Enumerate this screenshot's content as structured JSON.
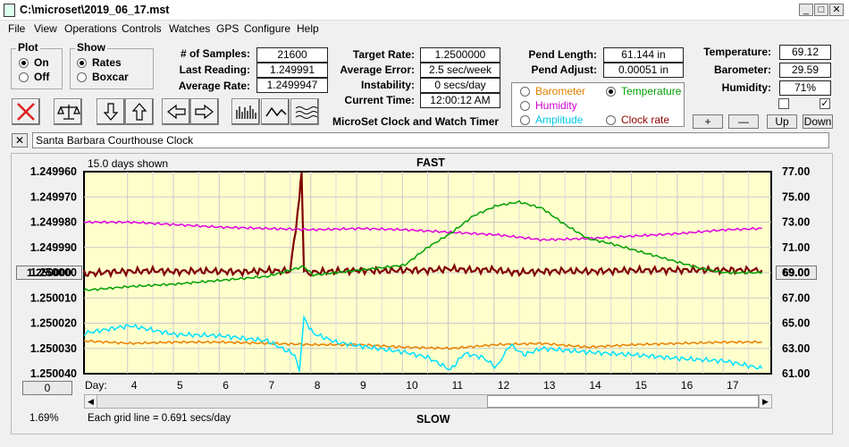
{
  "window": {
    "title": "C:\\microset\\2019_06_17.mst"
  },
  "menu": [
    "File",
    "View",
    "Operations",
    "Controls",
    "Watches",
    "GPS",
    "Configure",
    "Help"
  ],
  "plot_group": {
    "title": "Plot",
    "options": [
      {
        "label": "On",
        "selected": true
      },
      {
        "label": "Off",
        "selected": false
      }
    ]
  },
  "show_group": {
    "title": "Show",
    "options": [
      {
        "label": "Rates",
        "selected": true
      },
      {
        "label": "Boxcar",
        "selected": false
      }
    ]
  },
  "stats_left": [
    {
      "label": "# of Samples:",
      "value": "21600"
    },
    {
      "label": "Last Reading:",
      "value": "1.249991"
    },
    {
      "label": "Average Rate:",
      "value": "1.2499947"
    }
  ],
  "stats_mid": [
    {
      "label": "Target Rate:",
      "value": "1.2500000"
    },
    {
      "label": "Average Error:",
      "value": "2.5 sec/week"
    },
    {
      "label": "Instability:",
      "value": "0 secs/day"
    },
    {
      "label": "Current Time:",
      "value": "12:00:12 AM"
    }
  ],
  "app_caption": "MicroSet Clock and Watch Timer",
  "pend": [
    {
      "label": "Pend Length:",
      "value": "61.144 in"
    },
    {
      "label": "Pend Adjust:",
      "value": "0.00051 in"
    }
  ],
  "sensor_radios": [
    {
      "label": "Barometer",
      "color": "#e08000",
      "selected": false
    },
    {
      "label": "Temperature",
      "color": "#00a000",
      "selected": true
    },
    {
      "label": "Humidity",
      "color": "#d000d0",
      "selected": false
    },
    {
      "label": "Amplitude",
      "color": "#00c8e8",
      "selected": false
    },
    {
      "label": "Clock rate",
      "color": "#900000",
      "selected": false
    }
  ],
  "env": [
    {
      "label": "Temperature:",
      "value": "69.12"
    },
    {
      "label": "Barometer:",
      "value": "29.59"
    },
    {
      "label": "Humidity:",
      "value": "71%"
    }
  ],
  "env_checks": [
    false,
    true
  ],
  "adj_buttons": [
    "+",
    "—",
    "Up",
    "Down"
  ],
  "clock_name": "Santa Barbara Courthouse Clock",
  "chart_data": {
    "type": "line",
    "top_label": "FAST",
    "bottom_label": "SLOW",
    "days_shown": "15.0 days shown",
    "grid_note": "Each grid line = 0.691 secs/day",
    "x_prefix": "Day:",
    "x_ticks": [
      4,
      5,
      6,
      7,
      8,
      9,
      10,
      11,
      12,
      13,
      14,
      15,
      16,
      17
    ],
    "xlim": [
      3.0,
      18.0
    ],
    "left_ticks": [
      "1.249960",
      "1.249970",
      "1.249980",
      "1.249990",
      "1.250000",
      "1.250010",
      "1.250020",
      "1.250030",
      "1.250040"
    ],
    "left_ylim": [
      1.24996,
      1.25004
    ],
    "right_ticks": [
      "77.00",
      "75.00",
      "73.00",
      "71.00",
      "69.00",
      "67.00",
      "65.00",
      "63.00",
      "61.00"
    ],
    "right_ylim": [
      61,
      77
    ],
    "left_bottom_btn": "0",
    "right_mid_btn": "69.00",
    "left_mid_btn": "1.250000",
    "zoom_pct": "1.69%",
    "grid": true,
    "background": "#ffffcc",
    "series": [
      {
        "name": "Clock rate",
        "color": "#800000",
        "axis": "left",
        "x": [
          3.0,
          3.5,
          4.0,
          4.5,
          5.0,
          5.5,
          6.0,
          6.5,
          7.0,
          7.5,
          7.7,
          7.75,
          7.8,
          7.9,
          8.0,
          8.5,
          9.0,
          9.5,
          10.0,
          10.5,
          11.0,
          11.5,
          11.9,
          12.3,
          12.5,
          13.0,
          13.5,
          14.0,
          14.5,
          15.0,
          15.5,
          16.0,
          16.5,
          17.0,
          17.5,
          17.8
        ],
        "y": [
          1.2500005,
          1.2499998,
          1.2499995,
          1.2499992,
          1.2499996,
          1.2499993,
          1.2499995,
          1.2499997,
          1.2499992,
          1.2499994,
          1.249971,
          1.24996,
          1.249999,
          1.2500005,
          1.2499998,
          1.2499994,
          1.2499991,
          1.2499993,
          1.249999,
          1.2499991,
          1.2499985,
          1.249999,
          1.2499988,
          1.2499997,
          1.2499999,
          1.2499995,
          1.2499993,
          1.2499995,
          1.2499993,
          1.2499991,
          1.249999,
          1.249999,
          1.2499989,
          1.249999,
          1.249999,
          1.249999
        ]
      },
      {
        "name": "Humidity",
        "color": "#e000e0",
        "axis": "right",
        "x": [
          3.0,
          4.0,
          5.0,
          6.0,
          7.0,
          8.0,
          9.0,
          10.0,
          11.0,
          12.0,
          13.0,
          14.0,
          15.0,
          16.0,
          17.0,
          17.8
        ],
        "y": [
          73.0,
          73.0,
          72.8,
          72.6,
          72.5,
          72.4,
          72.5,
          72.4,
          72.2,
          72.0,
          71.6,
          71.7,
          71.9,
          72.1,
          72.4,
          72.5
        ]
      },
      {
        "name": "Temperature",
        "color": "#00a000",
        "axis": "right",
        "x": [
          3.0,
          4.0,
          5.0,
          6.0,
          7.0,
          7.8,
          8.0,
          9.0,
          10.0,
          10.5,
          11.0,
          11.5,
          12.0,
          12.5,
          13.0,
          13.5,
          14.0,
          14.5,
          15.0,
          15.5,
          16.0,
          16.5,
          17.0,
          17.8
        ],
        "y": [
          67.6,
          67.9,
          68.1,
          68.4,
          68.7,
          69.5,
          68.8,
          69.2,
          69.6,
          71.0,
          72.1,
          73.5,
          74.3,
          74.6,
          74.1,
          72.8,
          71.7,
          71.3,
          70.8,
          70.3,
          69.8,
          69.3,
          69.0,
          69.0
        ]
      },
      {
        "name": "Barometer",
        "color": "#e88000",
        "axis": "right",
        "x": [
          3.0,
          4.0,
          5.0,
          6.0,
          7.0,
          8.0,
          9.0,
          10.0,
          11.0,
          12.0,
          13.0,
          14.0,
          15.0,
          16.0,
          17.0,
          17.8
        ],
        "y": [
          63.6,
          63.4,
          63.5,
          63.5,
          63.4,
          63.3,
          63.3,
          63.1,
          63.0,
          63.3,
          63.4,
          63.1,
          63.3,
          63.4,
          63.5,
          63.5
        ]
      },
      {
        "name": "Amplitude",
        "color": "#00e0ff",
        "axis": "right",
        "x": [
          3.0,
          4.0,
          5.0,
          6.0,
          7.0,
          7.6,
          7.7,
          7.8,
          8.0,
          8.5,
          9.0,
          10.0,
          10.5,
          11.0,
          11.3,
          11.7,
          12.0,
          12.3,
          12.6,
          13.0,
          14.0,
          15.0,
          16.0,
          17.0,
          17.8
        ],
        "y": [
          64.2,
          64.8,
          64.1,
          64.0,
          63.6,
          62.5,
          61.2,
          65.4,
          64.2,
          63.5,
          63.2,
          62.7,
          62.3,
          61.3,
          62.6,
          62.3,
          61.5,
          63.3,
          62.5,
          63.0,
          62.7,
          62.5,
          62.2,
          62.0,
          61.4
        ]
      }
    ]
  }
}
